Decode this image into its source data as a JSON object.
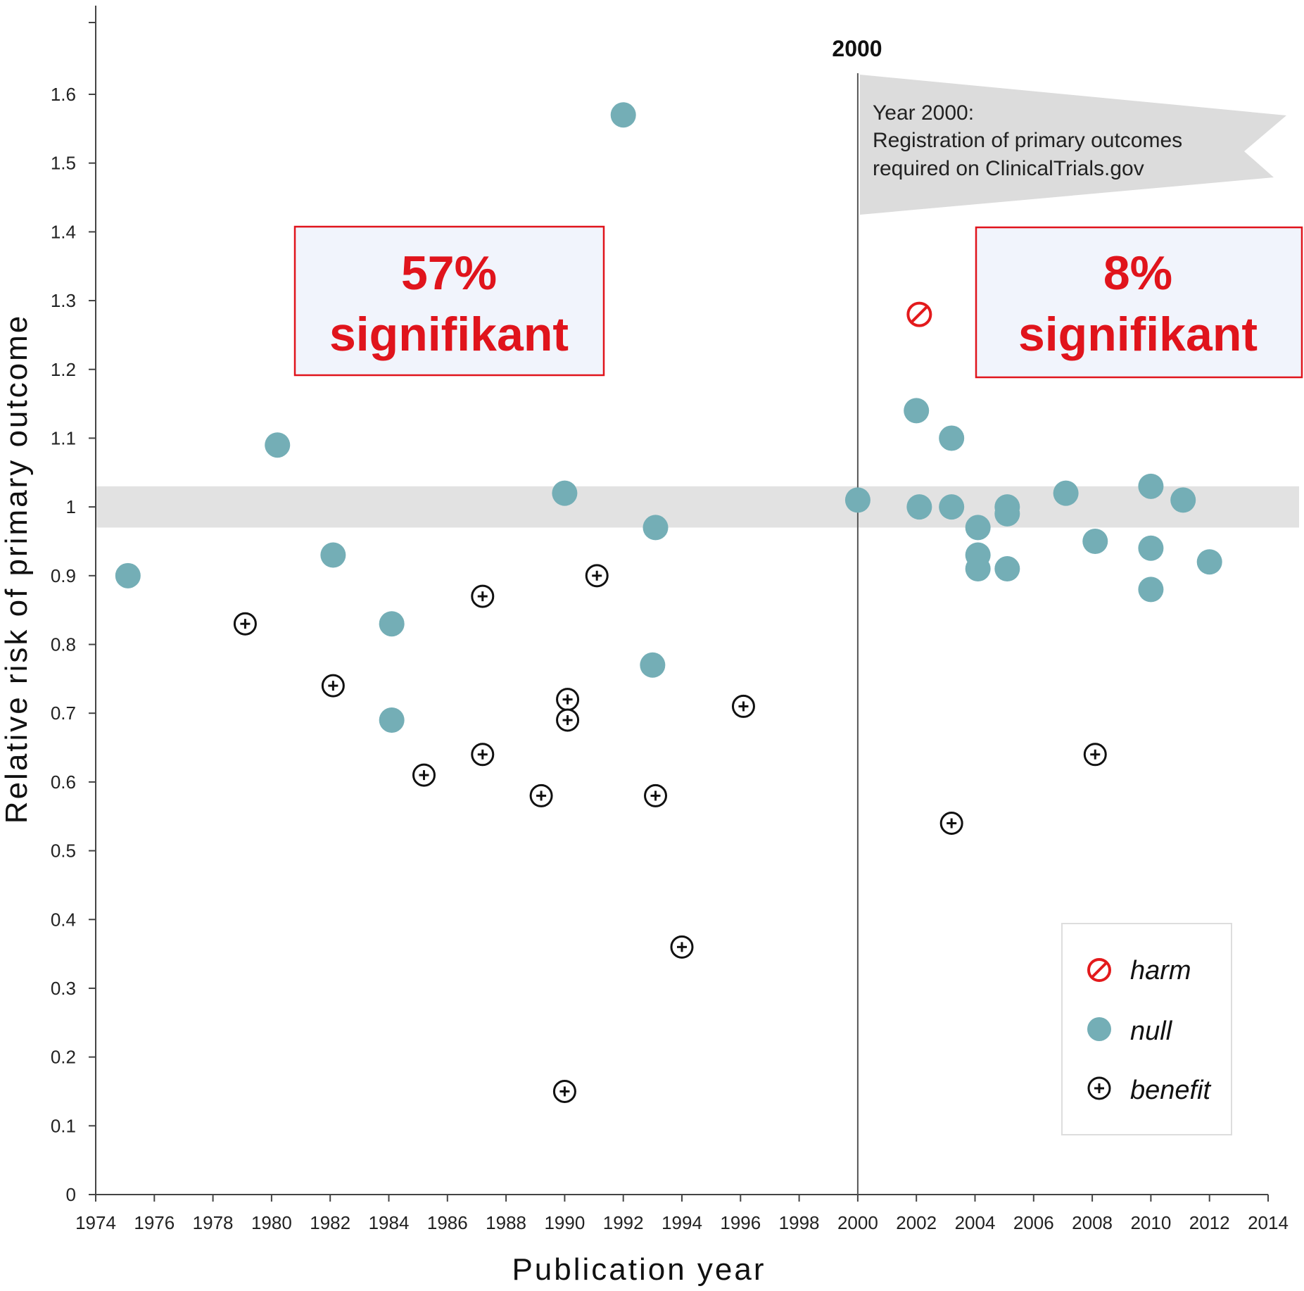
{
  "chart_data": {
    "type": "scatter",
    "xlabel": "Publication year",
    "ylabel": "Relative risk of primary outcome",
    "xlim": [
      1974,
      2014
    ],
    "ylim": [
      0,
      1.6
    ],
    "x_ticks": [
      "1974",
      "1976",
      "1978",
      "1980",
      "1982",
      "1984",
      "1986",
      "1988",
      "1990",
      "1992",
      "1994",
      "1996",
      "1998",
      "2000",
      "2002",
      "2004",
      "2006",
      "2008",
      "2010",
      "2012",
      "2014"
    ],
    "y_ticks": [
      "0",
      "0.1",
      "0.2",
      "0.3",
      "0.4",
      "0.5",
      "0.6",
      "0.7",
      "0.8",
      "0.9",
      "1",
      "1.1",
      "1.2",
      "1.3",
      "1.4",
      "1.5",
      "1.6"
    ],
    "band": [
      0.97,
      1.03
    ],
    "vline": {
      "x": 2000,
      "label": "2000"
    },
    "flag_lines": [
      "Year 2000:",
      "Registration of primary outcomes",
      "required on ClinicalTrials.gov"
    ],
    "annotations": [
      {
        "line1": "57%",
        "line2": "signifikant"
      },
      {
        "line1": "8%",
        "line2": "signifikant"
      }
    ],
    "legend": [
      {
        "key": "harm",
        "label": "harm"
      },
      {
        "key": "null",
        "label": "null"
      },
      {
        "key": "benefit",
        "label": "benefit"
      }
    ],
    "series": [
      {
        "name": "harm",
        "color": "#e31a1c",
        "points": [
          [
            2002.1,
            1.28
          ]
        ]
      },
      {
        "name": "null",
        "color": "#74aeb6",
        "points": [
          [
            1975.1,
            0.9
          ],
          [
            1980.2,
            1.09
          ],
          [
            1982.1,
            0.93
          ],
          [
            1984.1,
            0.83
          ],
          [
            1984.1,
            0.69
          ],
          [
            1990.0,
            1.02
          ],
          [
            1992.0,
            1.57
          ],
          [
            1993.1,
            0.97
          ],
          [
            1993.0,
            0.77
          ],
          [
            2000.0,
            1.01
          ],
          [
            2002.0,
            1.14
          ],
          [
            2002.1,
            1.0
          ],
          [
            2003.2,
            1.1
          ],
          [
            2003.2,
            1.0
          ],
          [
            2004.1,
            0.97
          ],
          [
            2004.1,
            0.93
          ],
          [
            2004.1,
            0.91
          ],
          [
            2005.1,
            1.0
          ],
          [
            2005.1,
            0.99
          ],
          [
            2005.1,
            0.91
          ],
          [
            2007.1,
            1.02
          ],
          [
            2008.1,
            0.95
          ],
          [
            2010.0,
            1.03
          ],
          [
            2010.0,
            0.94
          ],
          [
            2010.0,
            0.88
          ],
          [
            2011.1,
            1.01
          ],
          [
            2012.0,
            0.92
          ]
        ]
      },
      {
        "name": "benefit",
        "color": "#111111",
        "points": [
          [
            1979.1,
            0.83
          ],
          [
            1982.1,
            0.74
          ],
          [
            1985.2,
            0.61
          ],
          [
            1987.2,
            0.87
          ],
          [
            1987.2,
            0.64
          ],
          [
            1989.2,
            0.58
          ],
          [
            1990.1,
            0.72
          ],
          [
            1990.1,
            0.69
          ],
          [
            1990.0,
            0.15
          ],
          [
            1991.1,
            0.9
          ],
          [
            1993.1,
            0.58
          ],
          [
            1994.0,
            0.36
          ],
          [
            1996.1,
            0.71
          ],
          [
            2003.2,
            0.54
          ],
          [
            2008.1,
            0.64
          ]
        ]
      }
    ]
  }
}
